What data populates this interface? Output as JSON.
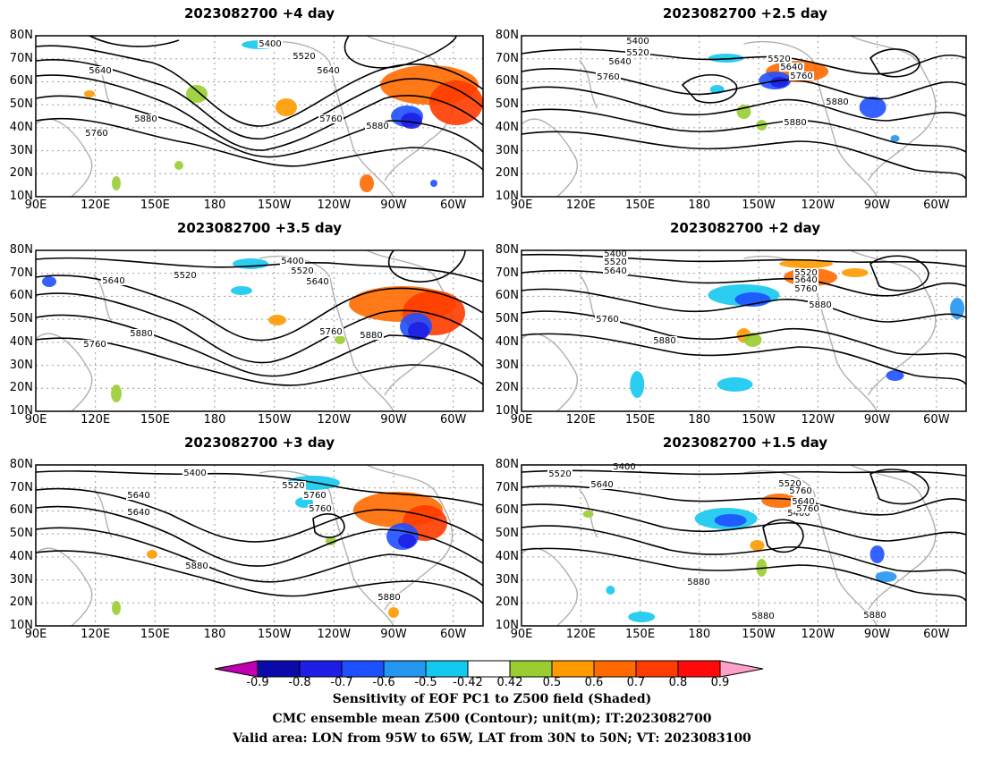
{
  "panels": [
    {
      "title": "2023082700  +4 day",
      "contour_labels": [
        "5400",
        "5520",
        "5640",
        "5640",
        "5760",
        "5880",
        "5880",
        "5760"
      ]
    },
    {
      "title": "2023082700  +2.5 day",
      "contour_labels": [
        "5400",
        "5520",
        "5640",
        "5520",
        "5640",
        "5760",
        "5760",
        "5880",
        "5880"
      ]
    },
    {
      "title": "2023082700  +3.5 day",
      "contour_labels": [
        "5400",
        "5520",
        "5520",
        "5640",
        "5640",
        "5760",
        "5880",
        "5760",
        "5880"
      ]
    },
    {
      "title": "2023082700  +2 day",
      "contour_labels": [
        "5400",
        "5520",
        "5640",
        "5520",
        "5640",
        "5760",
        "5760",
        "5880",
        "5880"
      ]
    },
    {
      "title": "2023082700  +3 day",
      "contour_labels": [
        "5400",
        "5520",
        "5640",
        "5760",
        "5640",
        "5760",
        "5880",
        "5880"
      ]
    },
    {
      "title": "2023082700  +1.5 day",
      "contour_labels": [
        "5520",
        "5400",
        "5640",
        "5520",
        "5640",
        "5760",
        "5400",
        "5760",
        "5880",
        "5880",
        "5880"
      ]
    }
  ],
  "lat_ticks": [
    "80N",
    "70N",
    "60N",
    "50N",
    "40N",
    "30N",
    "20N",
    "10N"
  ],
  "lon_ticks": [
    "90E",
    "120E",
    "150E",
    "180",
    "150W",
    "120W",
    "90W",
    "60W"
  ],
  "colorbar": {
    "labels": [
      "-0.9",
      "-0.8",
      "-0.7",
      "-0.6",
      "-0.5",
      "-0.42",
      "0.42",
      "0.5",
      "0.6",
      "0.7",
      "0.8",
      "0.9"
    ],
    "colors": [
      "#c000b0",
      "#0a0aa8",
      "#1e1ee6",
      "#1e50ff",
      "#2496f0",
      "#14c8f0",
      "#ffffff",
      "#9acd32",
      "#ff9a00",
      "#ff6a00",
      "#ff3c00",
      "#ff0a0a",
      "#ffa0c8"
    ]
  },
  "caption": {
    "line1": "Sensitivity of EOF PC1 to Z500 field (Shaded)",
    "line2": "CMC ensemble mean Z500 (Contour); unit(m); IT:2023082700",
    "line3": "Valid area: LON from 95W to 65W, LAT from 30N to 50N; VT: 2023083100"
  }
}
